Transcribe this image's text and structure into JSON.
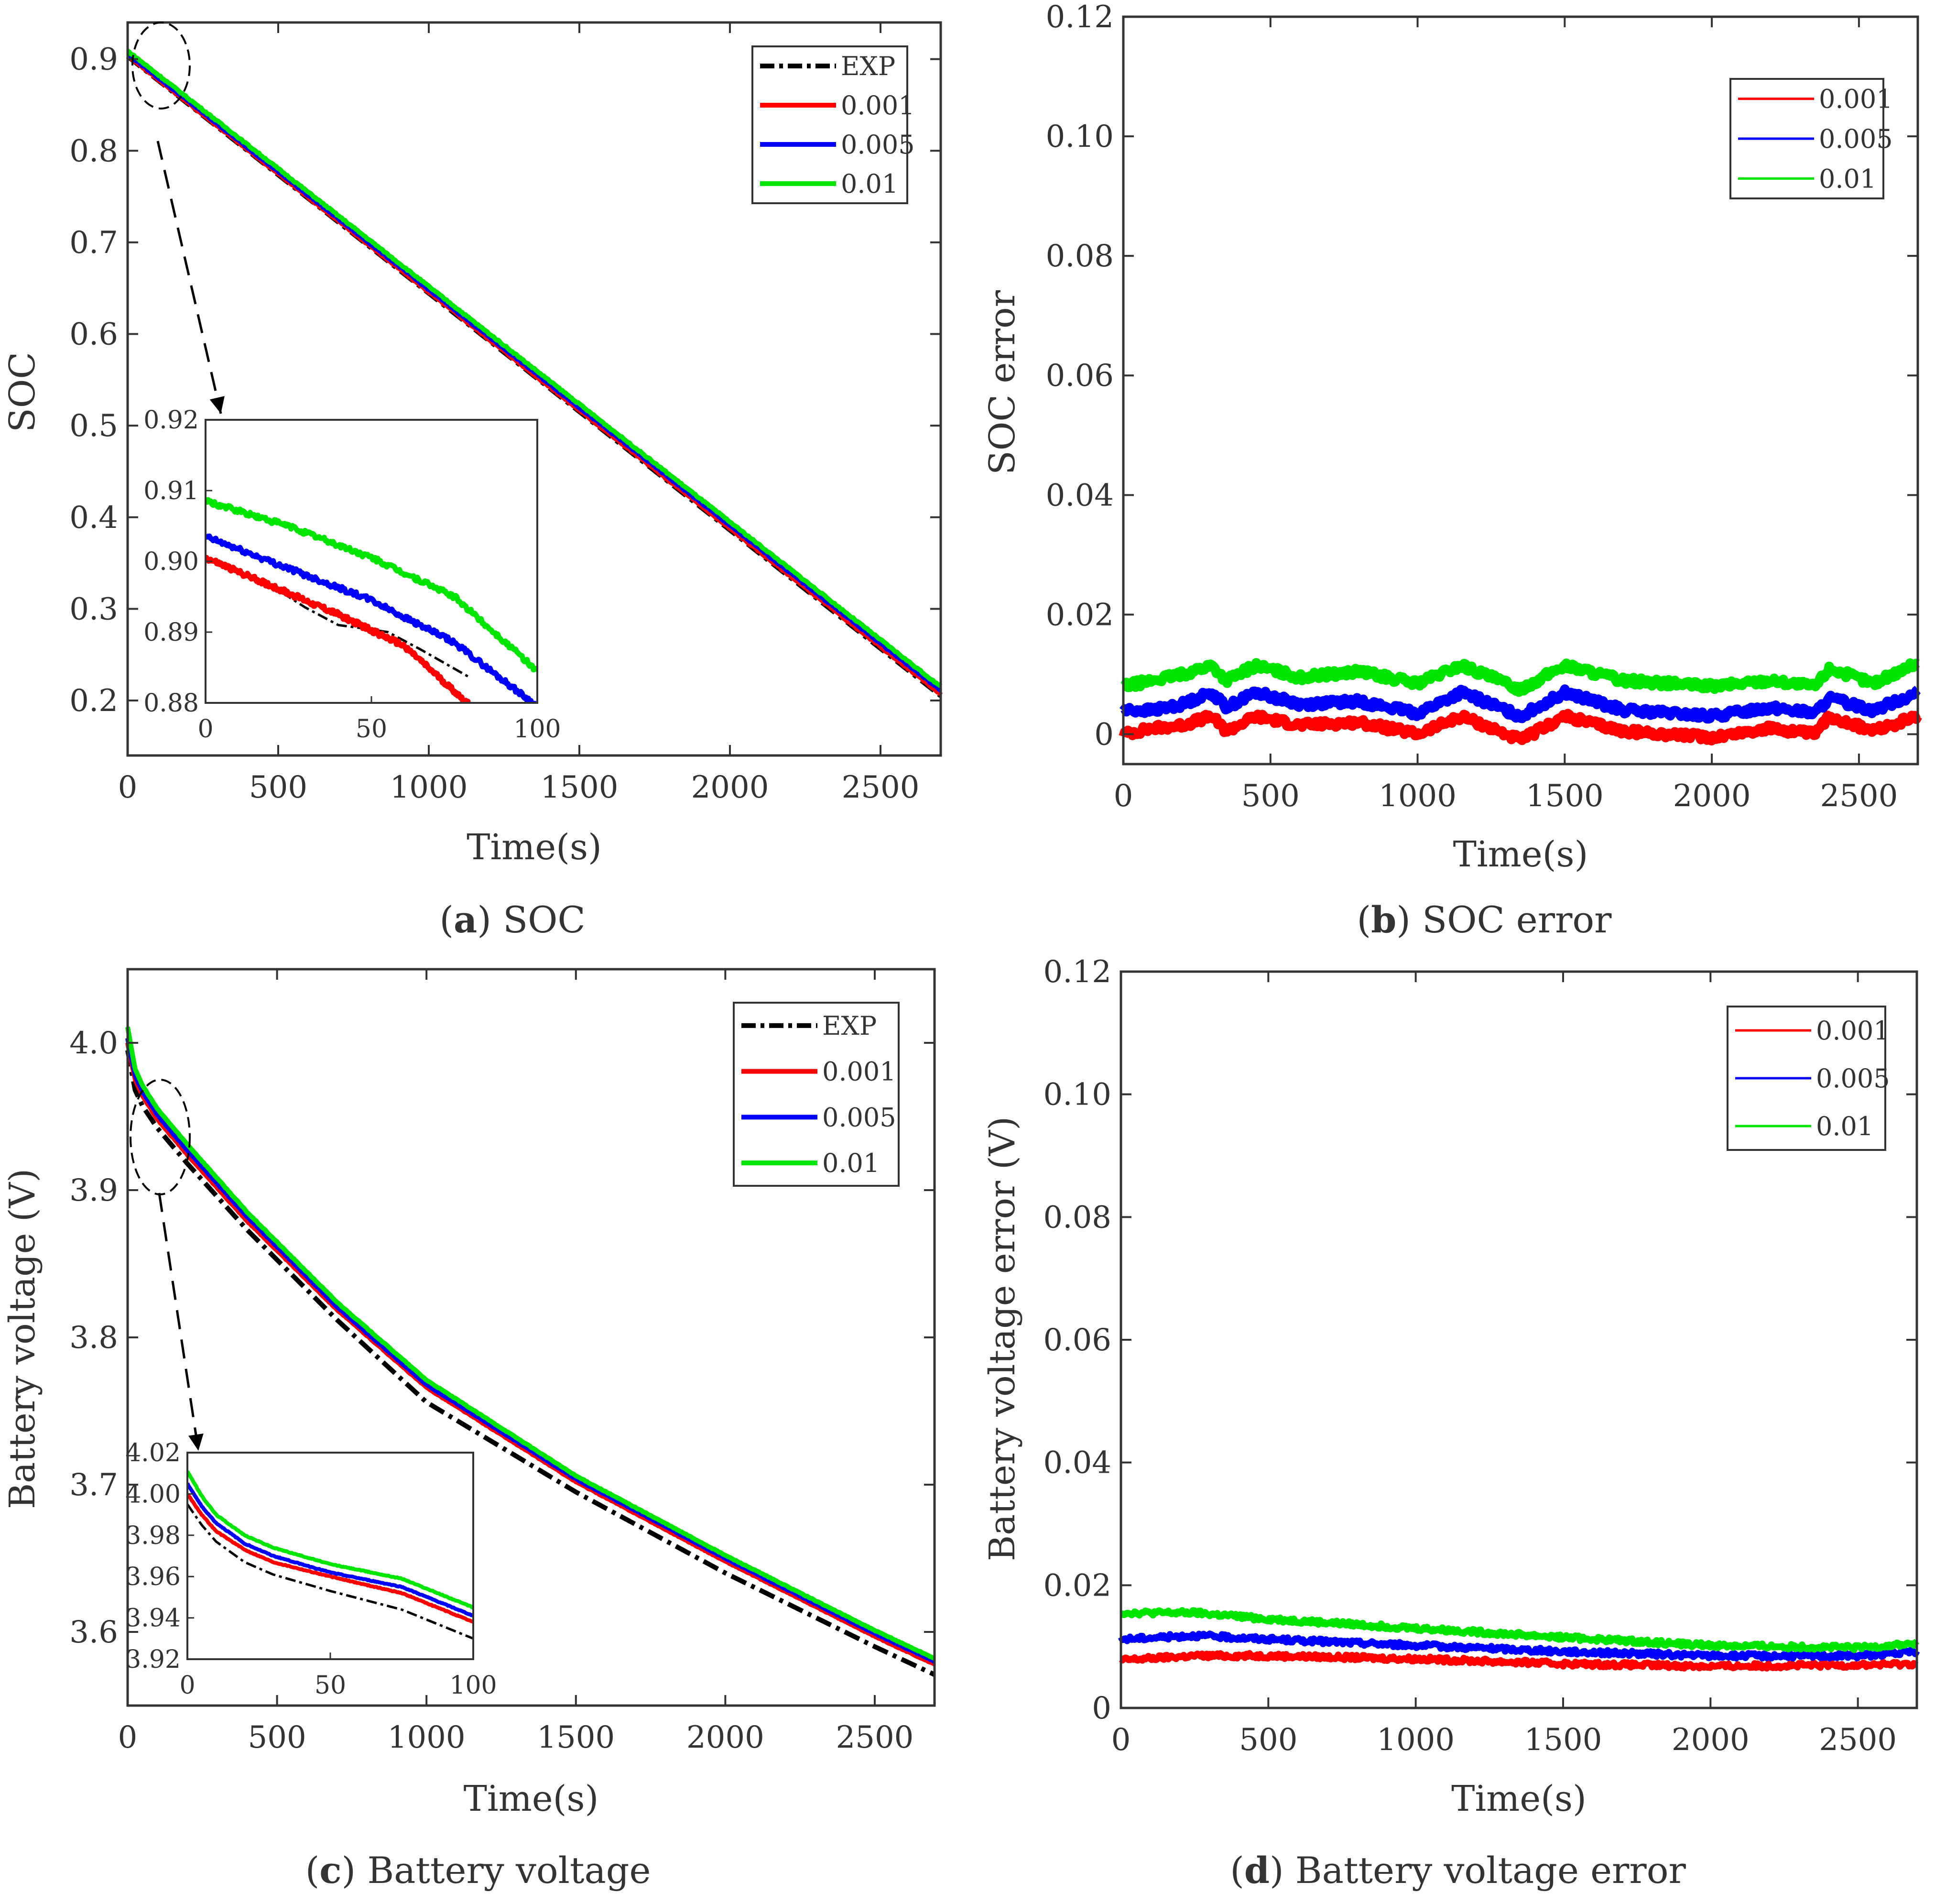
{
  "colors": {
    "exp": "#000000",
    "s0001": "#ff0000",
    "s0005": "#0000ff",
    "s001": "#00e600",
    "axis": "#333333"
  },
  "captions": {
    "a": {
      "letter": "a",
      "text": " SOC"
    },
    "b": {
      "letter": "b",
      "text": " SOC error"
    },
    "c": {
      "letter": "c",
      "text": " Battery voltage"
    },
    "d": {
      "letter": "d",
      "text": " Battery voltage error"
    }
  },
  "chart_data": [
    {
      "id": "a",
      "type": "line",
      "xlabel": "Time(s)",
      "ylabel": "SOC",
      "xlim": [
        0,
        2700
      ],
      "ylim": [
        0.14,
        0.94
      ],
      "xticks": [
        0,
        500,
        1000,
        1500,
        2000,
        2500
      ],
      "yticks": [
        0.2,
        0.3,
        0.4,
        0.5,
        0.6,
        0.7,
        0.8,
        0.9
      ],
      "ytick_labels": [
        "0.2",
        "0.3",
        "0.4",
        "0.5",
        "0.6",
        "0.7",
        "0.8",
        "0.9"
      ],
      "legend": [
        "EXP",
        "0.001",
        "0.005",
        "0.01"
      ],
      "series": [
        {
          "name": "EXP",
          "x": [
            0,
            2700
          ],
          "y": [
            0.903,
            0.205
          ]
        },
        {
          "name": "0.001",
          "x": [
            0,
            2700
          ],
          "y": [
            0.904,
            0.207
          ]
        },
        {
          "name": "0.005",
          "x": [
            0,
            2700
          ],
          "y": [
            0.906,
            0.211
          ]
        },
        {
          "name": "0.01",
          "x": [
            0,
            2700
          ],
          "y": [
            0.909,
            0.215
          ]
        }
      ],
      "inset": {
        "xlim": [
          0,
          100
        ],
        "ylim": [
          0.88,
          0.92
        ],
        "xticks": [
          0,
          50,
          100
        ],
        "yticks": [
          0.88,
          0.89,
          0.9,
          0.91,
          0.92
        ],
        "ytick_labels": [
          "0.88",
          "0.89",
          "0.90",
          "0.91",
          "0.92"
        ],
        "series": [
          {
            "name": "EXP",
            "x": [
              0,
              10,
              20,
              30,
              40,
              48,
              55,
              65,
              80
            ],
            "y": [
              0.9005,
              0.8985,
              0.8965,
              0.8935,
              0.891,
              0.8905,
              0.89,
              0.8875,
              0.8835
            ]
          },
          {
            "name": "0.001",
            "x": [
              0,
              20,
              40,
              60,
              80
            ],
            "y": [
              0.9005,
              0.8965,
              0.8925,
              0.888,
              0.8795
            ]
          },
          {
            "name": "0.005",
            "x": [
              0,
              25,
              50,
              75,
              100
            ],
            "y": [
              0.9035,
              0.899,
              0.8945,
              0.8885,
              0.8795
            ]
          },
          {
            "name": "0.01",
            "x": [
              0,
              25,
              50,
              75,
              100
            ],
            "y": [
              0.9085,
              0.905,
              0.9005,
              0.895,
              0.8845
            ]
          }
        ]
      }
    },
    {
      "id": "b",
      "type": "line",
      "xlabel": "Time(s)",
      "ylabel": "SOC error",
      "xlim": [
        0,
        2700
      ],
      "ylim": [
        -0.005,
        0.12
      ],
      "xticks": [
        0,
        500,
        1000,
        1500,
        2000,
        2500
      ],
      "yticks": [
        0,
        0.02,
        0.04,
        0.06,
        0.08,
        0.1,
        0.12
      ],
      "ytick_labels": [
        "0",
        "0.02",
        "0.04",
        "0.06",
        "0.08",
        "0.10",
        "0.12"
      ],
      "legend": [
        "0.001",
        "0.005",
        "0.01"
      ],
      "series": [
        {
          "name": "0.001",
          "x": [
            0,
            100,
            200,
            300,
            350,
            450,
            600,
            800,
            1000,
            1150,
            1350,
            1500,
            1700,
            2000,
            2200,
            2350,
            2400,
            2550,
            2700
          ],
          "y": [
            0.0,
            0.001,
            0.0015,
            0.003,
            0.0005,
            0.003,
            0.0015,
            0.002,
            0.0,
            0.003,
            -0.001,
            0.003,
            0.0005,
            -0.0005,
            0.001,
            0.0,
            0.003,
            0.0005,
            0.003
          ]
        },
        {
          "name": "0.005",
          "x": [
            0,
            100,
            200,
            300,
            350,
            450,
            600,
            800,
            1000,
            1150,
            1350,
            1500,
            1700,
            2000,
            2200,
            2350,
            2400,
            2550,
            2700
          ],
          "y": [
            0.004,
            0.004,
            0.005,
            0.007,
            0.0045,
            0.007,
            0.005,
            0.0055,
            0.0035,
            0.007,
            0.003,
            0.007,
            0.004,
            0.003,
            0.0045,
            0.0035,
            0.006,
            0.004,
            0.007
          ]
        },
        {
          "name": "0.01",
          "x": [
            0,
            100,
            200,
            300,
            350,
            450,
            600,
            800,
            1000,
            1150,
            1350,
            1500,
            1700,
            2000,
            2200,
            2350,
            2400,
            2550,
            2700
          ],
          "y": [
            0.008,
            0.009,
            0.01,
            0.0115,
            0.009,
            0.0115,
            0.0095,
            0.0105,
            0.0085,
            0.0115,
            0.0075,
            0.0115,
            0.009,
            0.008,
            0.009,
            0.008,
            0.011,
            0.0085,
            0.012
          ]
        }
      ]
    },
    {
      "id": "c",
      "type": "line",
      "xlabel": "Time(s)",
      "ylabel": "Battery voltage (V)",
      "xlim": [
        0,
        2700
      ],
      "ylim": [
        3.55,
        4.05
      ],
      "xticks": [
        0,
        500,
        1000,
        1500,
        2000,
        2500
      ],
      "yticks": [
        3.6,
        3.7,
        3.8,
        3.9,
        4.0
      ],
      "ytick_labels": [
        "3.6",
        "3.7",
        "3.8",
        "3.9",
        "4.0"
      ],
      "legend": [
        "EXP",
        "0.001",
        "0.005",
        "0.01"
      ],
      "series": [
        {
          "name": "EXP",
          "x": [
            0,
            25,
            50,
            100,
            200,
            400,
            700,
            1000,
            1500,
            2000,
            2500,
            2700
          ],
          "y": [
            3.995,
            3.968,
            3.957,
            3.942,
            3.918,
            3.873,
            3.812,
            3.756,
            3.695,
            3.64,
            3.59,
            3.571
          ]
        },
        {
          "name": "0.001",
          "x": [
            0,
            25,
            50,
            100,
            200,
            400,
            700,
            1000,
            1500,
            2000,
            2500,
            2700
          ],
          "y": [
            4.0,
            3.975,
            3.964,
            3.948,
            3.924,
            3.879,
            3.819,
            3.766,
            3.702,
            3.648,
            3.597,
            3.578
          ]
        },
        {
          "name": "0.005",
          "x": [
            0,
            25,
            50,
            100,
            200,
            400,
            700,
            1000,
            1500,
            2000,
            2500,
            2700
          ],
          "y": [
            4.003,
            3.978,
            3.967,
            3.951,
            3.927,
            3.882,
            3.821,
            3.768,
            3.704,
            3.65,
            3.599,
            3.58
          ]
        },
        {
          "name": "0.01",
          "x": [
            0,
            25,
            50,
            100,
            200,
            400,
            700,
            1000,
            1500,
            2000,
            2500,
            2700
          ],
          "y": [
            4.011,
            3.982,
            3.971,
            3.955,
            3.931,
            3.885,
            3.824,
            3.771,
            3.706,
            3.652,
            3.601,
            3.582
          ]
        }
      ],
      "inset": {
        "xlim": [
          0,
          100
        ],
        "ylim": [
          3.92,
          4.02
        ],
        "xticks": [
          0,
          50,
          100
        ],
        "yticks": [
          3.92,
          3.94,
          3.96,
          3.98,
          4.0,
          4.02
        ],
        "ytick_labels": [
          "3.92",
          "3.94",
          "3.96",
          "3.98",
          "4.00",
          "4.02"
        ],
        "series": [
          {
            "name": "EXP",
            "x": [
              0,
              5,
              10,
              20,
              30,
              50,
              75,
              100
            ],
            "y": [
              3.995,
              3.985,
              3.977,
              3.967,
              3.961,
              3.953,
              3.944,
              3.93
            ]
          },
          {
            "name": "0.001",
            "x": [
              0,
              5,
              10,
              20,
              30,
              50,
              75,
              100
            ],
            "y": [
              4.0,
              3.99,
              3.982,
              3.973,
              3.967,
              3.96,
              3.952,
              3.938
            ]
          },
          {
            "name": "0.005",
            "x": [
              0,
              5,
              10,
              20,
              30,
              50,
              75,
              100
            ],
            "y": [
              4.005,
              3.994,
              3.986,
              3.976,
              3.97,
              3.962,
              3.955,
              3.941
            ]
          },
          {
            "name": "0.01",
            "x": [
              0,
              5,
              10,
              20,
              30,
              50,
              75,
              100
            ],
            "y": [
              4.011,
              3.999,
              3.99,
              3.98,
              3.974,
              3.966,
              3.959,
              3.945
            ]
          }
        ]
      }
    },
    {
      "id": "d",
      "type": "line",
      "xlabel": "Time(s)",
      "ylabel": "Battery voltage error (V)",
      "xlim": [
        0,
        2700
      ],
      "ylim": [
        0,
        0.12
      ],
      "xticks": [
        0,
        500,
        1000,
        1500,
        2000,
        2500
      ],
      "yticks": [
        0,
        0.02,
        0.04,
        0.06,
        0.08,
        0.1,
        0.12
      ],
      "ytick_labels": [
        "0",
        "0.02",
        "0.04",
        "0.06",
        "0.08",
        "0.10",
        "0.12"
      ],
      "legend": [
        "0.001",
        "0.005",
        "0.01"
      ],
      "series": [
        {
          "name": "0.001",
          "x": [
            0,
            250,
            500,
            1000,
            1500,
            2000,
            2500,
            2700
          ],
          "y": [
            0.0078,
            0.0085,
            0.0085,
            0.008,
            0.0072,
            0.0068,
            0.007,
            0.0072
          ]
        },
        {
          "name": "0.005",
          "x": [
            0,
            250,
            500,
            1000,
            1500,
            2000,
            2500,
            2700
          ],
          "y": [
            0.0112,
            0.0118,
            0.0112,
            0.0102,
            0.0092,
            0.0085,
            0.0085,
            0.0092
          ]
        },
        {
          "name": "0.01",
          "x": [
            0,
            250,
            500,
            1000,
            1500,
            2000,
            2500,
            2700
          ],
          "y": [
            0.0155,
            0.0155,
            0.0145,
            0.013,
            0.0115,
            0.0102,
            0.0098,
            0.0105
          ]
        }
      ]
    }
  ]
}
